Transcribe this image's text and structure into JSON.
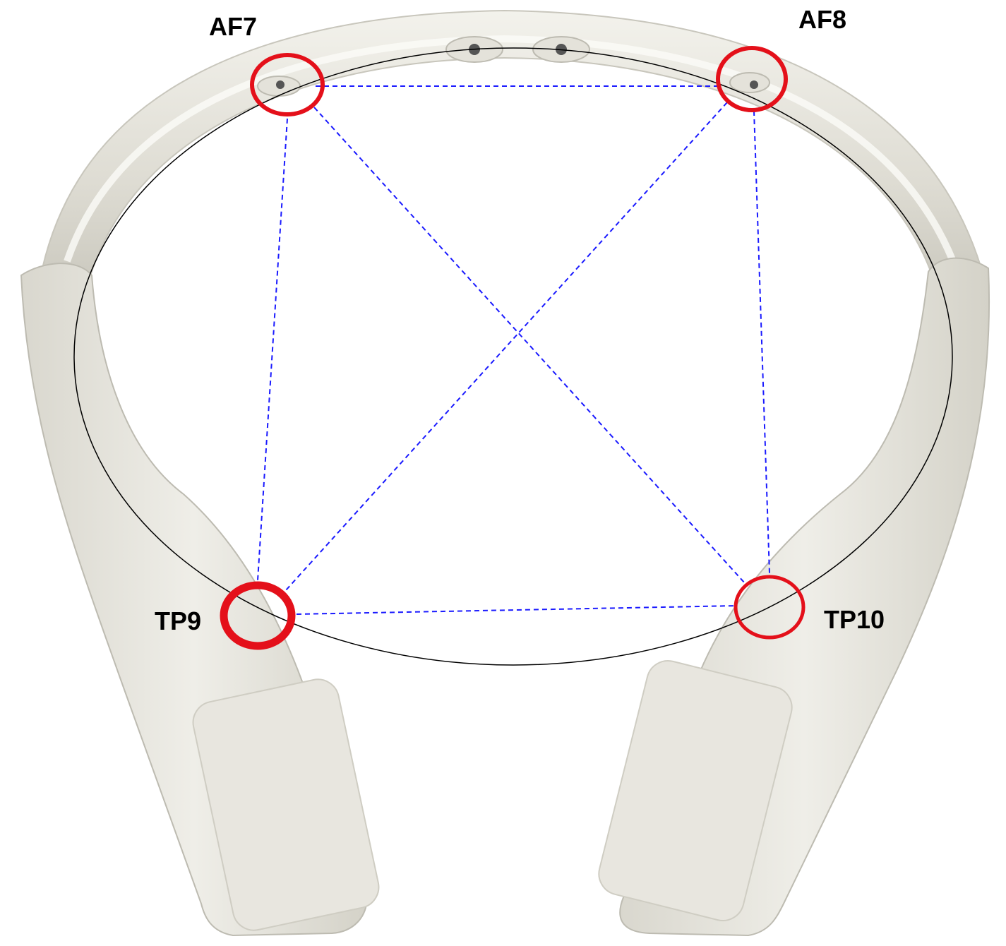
{
  "electrodes": [
    {
      "label": "AF7"
    },
    {
      "label": "AF8"
    },
    {
      "label": "TP9"
    },
    {
      "label": "TP10"
    }
  ]
}
